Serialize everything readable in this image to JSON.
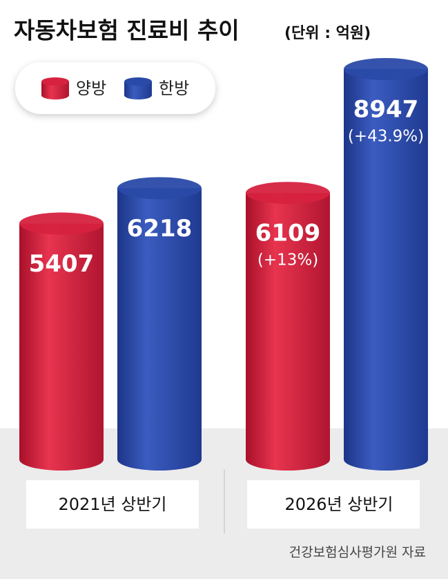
{
  "chart_data": {
    "type": "bar",
    "title": "자동차보험 진료비 추이",
    "subtitle": "(단위 : 억원)",
    "categories": [
      "2021년 상반기",
      "2026년 상반기"
    ],
    "series": [
      {
        "name": "양방",
        "color": "#d6223f",
        "values": [
          5407,
          6109
        ],
        "changes": [
          null,
          "(+13%)"
        ]
      },
      {
        "name": "한방",
        "color": "#2a4aa8",
        "values": [
          6218,
          8947
        ],
        "changes": [
          null,
          "(+43.9%)"
        ]
      }
    ],
    "source": "건강보험심사평가원 자료"
  }
}
